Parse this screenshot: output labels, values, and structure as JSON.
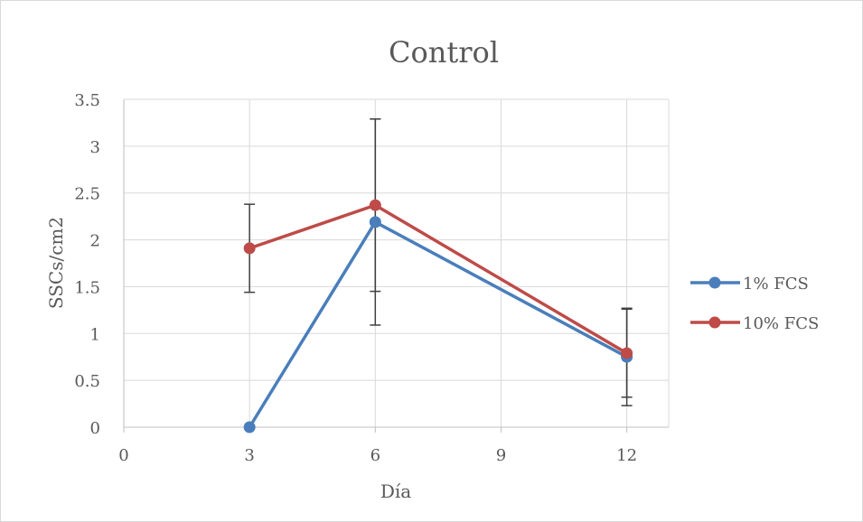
{
  "chart_data": {
    "type": "line",
    "title": "Control",
    "xlabel": "Día",
    "ylabel": "SSCs/cm2",
    "xlim": [
      0,
      13
    ],
    "ylim": [
      0,
      3.5
    ],
    "x_ticks": [
      "0",
      "3",
      "6",
      "9",
      "12"
    ],
    "y_ticks": [
      "0",
      "0.5",
      "1",
      "1.5",
      "2",
      "2.5",
      "3",
      "3.5"
    ],
    "grid": true,
    "legend_position": "right",
    "series": [
      {
        "name": "1% FCS",
        "color": "#4a7ebb",
        "x": [
          3,
          6,
          12
        ],
        "y": [
          0,
          2.19,
          0.75
        ],
        "error": [
          null,
          1.1,
          0.52
        ]
      },
      {
        "name": "10% FCS",
        "color": "#be4b48",
        "x": [
          3,
          6,
          12
        ],
        "y": [
          1.91,
          2.37,
          0.79
        ],
        "error": [
          0.47,
          0.92,
          0.47
        ]
      }
    ]
  },
  "colors": {
    "grid": "#d9d9d9",
    "text": "#595959",
    "axis": "#bfbfbf",
    "errorbar": "#404040"
  }
}
